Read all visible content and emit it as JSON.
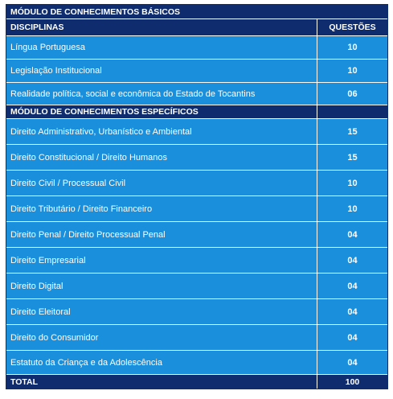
{
  "title": "MÓDULO DE CONHECIMENTOS BÁSICOS",
  "header": {
    "col1": "DISCIPLINAS",
    "col2": "QUESTÕES"
  },
  "basic": [
    {
      "name": "Língua Portuguesa",
      "q": "10"
    },
    {
      "name": "Legislação Institucional",
      "q": "10"
    },
    {
      "name": "Realidade política, social e econômica do Estado de Tocantins",
      "q": "06"
    }
  ],
  "specific_title": "MÓDULO DE CONHECIMENTOS ESPECÍFICOS",
  "specific": [
    {
      "name": "Direito Administrativo, Urbanístico e Ambiental",
      "q": "15"
    },
    {
      "name": "Direito Constitucional / Direito Humanos",
      "q": "15"
    },
    {
      "name": "Direito Civil / Processual Civil",
      "q": "10"
    },
    {
      "name": "Direito Tributário / Direito Financeiro",
      "q": "10"
    },
    {
      "name": "Direito Penal / Direito Processual Penal",
      "q": "04"
    },
    {
      "name": "Direito Empresarial",
      "q": "04"
    },
    {
      "name": "Direito Digital",
      "q": "04"
    },
    {
      "name": "Direito Eleitoral",
      "q": "04"
    },
    {
      "name": "Direito do Consumidor",
      "q": "04"
    },
    {
      "name": "Estatuto da Criança e da Adolescência",
      "q": "04"
    }
  ],
  "total": {
    "label": "TOTAL",
    "value": "100"
  }
}
